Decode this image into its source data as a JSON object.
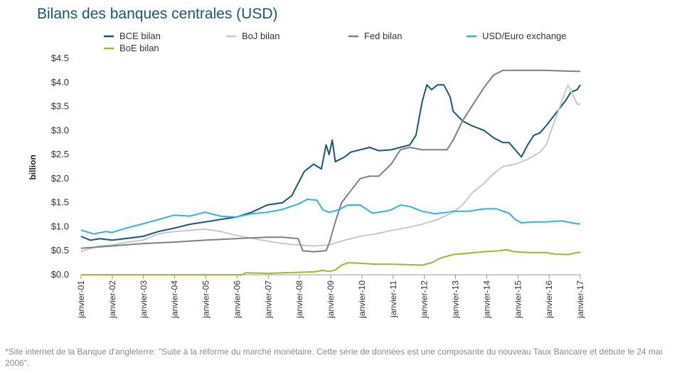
{
  "chart_data": {
    "type": "line",
    "title": "Bilans des banques centrales (USD)",
    "ylabel": "billion",
    "xlabel": "",
    "ylim": [
      0,
      4.5
    ],
    "yticks": [
      "$0.0",
      "$0.5",
      "$1.0",
      "$1.5",
      "$2.0",
      "$2.5",
      "$3.0",
      "$3.5",
      "$4.0",
      "$4.5"
    ],
    "xticks": [
      "janvier-01",
      "janvier-02",
      "janvier-03",
      "janvier-04",
      "janvier-05",
      "janvier-06",
      "janvier-07",
      "janvier-08",
      "janvier-09",
      "janvier-10",
      "janvier-11",
      "janvier-12",
      "janvier-13",
      "janvier-14",
      "janvier-15",
      "janvier-16",
      "janvier-17"
    ],
    "xlim": [
      2001,
      2017.1
    ],
    "grid": false,
    "legend_position": "top",
    "series": [
      {
        "name": "BCE bilan",
        "color": "#17577a",
        "points": [
          [
            2001,
            0.8
          ],
          [
            2001.3,
            0.72
          ],
          [
            2001.6,
            0.75
          ],
          [
            2002,
            0.72
          ],
          [
            2002.5,
            0.76
          ],
          [
            2003,
            0.8
          ],
          [
            2003.5,
            0.9
          ],
          [
            2004,
            0.97
          ],
          [
            2004.5,
            1.05
          ],
          [
            2005,
            1.1
          ],
          [
            2005.5,
            1.15
          ],
          [
            2006,
            1.2
          ],
          [
            2006.5,
            1.3
          ],
          [
            2007,
            1.45
          ],
          [
            2007.5,
            1.5
          ],
          [
            2007.8,
            1.65
          ],
          [
            2008,
            1.9
          ],
          [
            2008.2,
            2.15
          ],
          [
            2008.5,
            2.3
          ],
          [
            2008.75,
            2.2
          ],
          [
            2008.9,
            2.7
          ],
          [
            2009,
            2.5
          ],
          [
            2009.1,
            2.8
          ],
          [
            2009.2,
            2.35
          ],
          [
            2009.5,
            2.45
          ],
          [
            2009.7,
            2.55
          ],
          [
            2010,
            2.6
          ],
          [
            2010.3,
            2.65
          ],
          [
            2010.6,
            2.58
          ],
          [
            2011,
            2.6
          ],
          [
            2011.3,
            2.65
          ],
          [
            2011.6,
            2.7
          ],
          [
            2011.8,
            2.9
          ],
          [
            2012,
            3.6
          ],
          [
            2012.15,
            3.95
          ],
          [
            2012.3,
            3.85
          ],
          [
            2012.5,
            3.95
          ],
          [
            2012.7,
            3.95
          ],
          [
            2012.9,
            3.7
          ],
          [
            2013,
            3.4
          ],
          [
            2013.3,
            3.2
          ],
          [
            2013.6,
            3.1
          ],
          [
            2014,
            3.0
          ],
          [
            2014.3,
            2.85
          ],
          [
            2014.6,
            2.75
          ],
          [
            2014.8,
            2.75
          ],
          [
            2015,
            2.6
          ],
          [
            2015.2,
            2.45
          ],
          [
            2015.4,
            2.7
          ],
          [
            2015.6,
            2.9
          ],
          [
            2015.8,
            2.95
          ],
          [
            2016,
            3.1
          ],
          [
            2016.3,
            3.35
          ],
          [
            2016.6,
            3.6
          ],
          [
            2016.8,
            3.8
          ],
          [
            2017,
            3.85
          ],
          [
            2017.1,
            3.95
          ]
        ]
      },
      {
        "name": "BoJ bilan",
        "color": "#c8c8c8",
        "points": [
          [
            2001,
            0.48
          ],
          [
            2001.3,
            0.55
          ],
          [
            2001.6,
            0.6
          ],
          [
            2002,
            0.62
          ],
          [
            2002.5,
            0.68
          ],
          [
            2003,
            0.72
          ],
          [
            2003.5,
            0.85
          ],
          [
            2004,
            0.9
          ],
          [
            2004.5,
            0.92
          ],
          [
            2005,
            0.95
          ],
          [
            2005.5,
            0.9
          ],
          [
            2006,
            0.82
          ],
          [
            2006.5,
            0.76
          ],
          [
            2007,
            0.7
          ],
          [
            2007.5,
            0.65
          ],
          [
            2008,
            0.62
          ],
          [
            2008.5,
            0.6
          ],
          [
            2009,
            0.62
          ],
          [
            2009.5,
            0.72
          ],
          [
            2010,
            0.8
          ],
          [
            2010.5,
            0.85
          ],
          [
            2011,
            0.92
          ],
          [
            2011.5,
            0.98
          ],
          [
            2012,
            1.05
          ],
          [
            2012.5,
            1.15
          ],
          [
            2013,
            1.3
          ],
          [
            2013.3,
            1.45
          ],
          [
            2013.6,
            1.7
          ],
          [
            2014,
            1.9
          ],
          [
            2014.3,
            2.1
          ],
          [
            2014.6,
            2.25
          ],
          [
            2015,
            2.3
          ],
          [
            2015.4,
            2.4
          ],
          [
            2015.8,
            2.55
          ],
          [
            2016,
            2.7
          ],
          [
            2016.3,
            3.25
          ],
          [
            2016.5,
            3.6
          ],
          [
            2016.7,
            3.95
          ],
          [
            2016.85,
            3.75
          ],
          [
            2017,
            3.55
          ],
          [
            2017.1,
            3.55
          ]
        ]
      },
      {
        "name": "Fed bilan",
        "color": "#808080",
        "points": [
          [
            2001,
            0.55
          ],
          [
            2002,
            0.6
          ],
          [
            2003,
            0.65
          ],
          [
            2004,
            0.68
          ],
          [
            2005,
            0.72
          ],
          [
            2006,
            0.75
          ],
          [
            2007,
            0.78
          ],
          [
            2007.5,
            0.78
          ],
          [
            2008,
            0.75
          ],
          [
            2008.15,
            0.5
          ],
          [
            2008.5,
            0.48
          ],
          [
            2008.9,
            0.5
          ],
          [
            2009,
            0.65
          ],
          [
            2009.2,
            1.1
          ],
          [
            2009.4,
            1.5
          ],
          [
            2009.7,
            1.75
          ],
          [
            2010,
            2.0
          ],
          [
            2010.3,
            2.05
          ],
          [
            2010.6,
            2.05
          ],
          [
            2011,
            2.3
          ],
          [
            2011.3,
            2.6
          ],
          [
            2011.6,
            2.65
          ],
          [
            2012,
            2.6
          ],
          [
            2012.5,
            2.6
          ],
          [
            2012.8,
            2.6
          ],
          [
            2013,
            2.8
          ],
          [
            2013.3,
            3.2
          ],
          [
            2013.6,
            3.5
          ],
          [
            2014,
            3.9
          ],
          [
            2014.3,
            4.15
          ],
          [
            2014.6,
            4.25
          ],
          [
            2015,
            4.25
          ],
          [
            2015.5,
            4.25
          ],
          [
            2016,
            4.25
          ],
          [
            2016.5,
            4.24
          ],
          [
            2017,
            4.23
          ],
          [
            2017.1,
            4.23
          ]
        ]
      },
      {
        "name": "USD/Euro exchange",
        "color": "#2fb5dc",
        "points": [
          [
            2001,
            0.93
          ],
          [
            2001.4,
            0.85
          ],
          [
            2001.8,
            0.9
          ],
          [
            2002,
            0.88
          ],
          [
            2002.5,
            0.98
          ],
          [
            2003,
            1.06
          ],
          [
            2003.5,
            1.15
          ],
          [
            2004,
            1.24
          ],
          [
            2004.5,
            1.22
          ],
          [
            2005,
            1.3
          ],
          [
            2005.5,
            1.22
          ],
          [
            2006,
            1.2
          ],
          [
            2006.5,
            1.27
          ],
          [
            2007,
            1.3
          ],
          [
            2007.5,
            1.36
          ],
          [
            2008,
            1.47
          ],
          [
            2008.3,
            1.57
          ],
          [
            2008.6,
            1.55
          ],
          [
            2008.8,
            1.35
          ],
          [
            2009,
            1.3
          ],
          [
            2009.3,
            1.35
          ],
          [
            2009.6,
            1.45
          ],
          [
            2010,
            1.45
          ],
          [
            2010.4,
            1.28
          ],
          [
            2010.8,
            1.32
          ],
          [
            2011,
            1.35
          ],
          [
            2011.3,
            1.45
          ],
          [
            2011.6,
            1.42
          ],
          [
            2012,
            1.32
          ],
          [
            2012.4,
            1.27
          ],
          [
            2012.8,
            1.3
          ],
          [
            2013,
            1.32
          ],
          [
            2013.5,
            1.32
          ],
          [
            2014,
            1.37
          ],
          [
            2014.4,
            1.37
          ],
          [
            2014.8,
            1.28
          ],
          [
            2015,
            1.15
          ],
          [
            2015.2,
            1.08
          ],
          [
            2015.6,
            1.1
          ],
          [
            2016,
            1.1
          ],
          [
            2016.5,
            1.12
          ],
          [
            2017,
            1.06
          ],
          [
            2017.1,
            1.06
          ]
        ]
      },
      {
        "name": "BoE bilan",
        "color": "#a5b62a",
        "points": [
          [
            2001,
            0.0
          ],
          [
            2006.2,
            0.0
          ],
          [
            2006.3,
            0.04
          ],
          [
            2007,
            0.03
          ],
          [
            2007.5,
            0.04
          ],
          [
            2008,
            0.05
          ],
          [
            2008.5,
            0.06
          ],
          [
            2008.8,
            0.09
          ],
          [
            2009,
            0.07
          ],
          [
            2009.2,
            0.1
          ],
          [
            2009.4,
            0.2
          ],
          [
            2009.6,
            0.25
          ],
          [
            2010,
            0.24
          ],
          [
            2010.5,
            0.22
          ],
          [
            2011,
            0.22
          ],
          [
            2011.5,
            0.21
          ],
          [
            2012,
            0.2
          ],
          [
            2012.3,
            0.25
          ],
          [
            2012.6,
            0.35
          ],
          [
            2013,
            0.42
          ],
          [
            2013.5,
            0.45
          ],
          [
            2014,
            0.48
          ],
          [
            2014.5,
            0.5
          ],
          [
            2014.7,
            0.52
          ],
          [
            2015,
            0.48
          ],
          [
            2015.5,
            0.46
          ],
          [
            2016,
            0.46
          ],
          [
            2016.3,
            0.43
          ],
          [
            2016.7,
            0.42
          ],
          [
            2017,
            0.46
          ],
          [
            2017.1,
            0.47
          ]
        ]
      }
    ]
  },
  "footnote": "*Site internet de la Banque d'angleterre: \"Suite à la réforme du marché monétaire. Cette série de données est une composante du nouveau Taux Bancaire et débute le 24 mai 2006\"."
}
